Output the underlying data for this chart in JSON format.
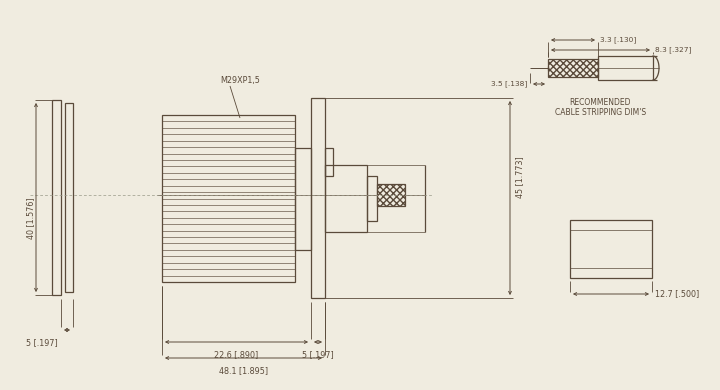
{
  "bg_color": "#f0ece0",
  "line_color": "#5a4a3a",
  "lw": 0.9,
  "fs": 5.8,
  "dim_labels": {
    "height_40": "40 [1.576]",
    "width_5_left": "5 [.197]",
    "total_48": "48.1 [1.895]",
    "section_22": "22.6 [.890]",
    "section_5": "5 [.197]",
    "height_45": "45 [1.773]",
    "strip_3_3": "3.3 [.130]",
    "strip_8_3": "8.3 [.327]",
    "strip_3_5": "3.5 [.138]",
    "nut_12_7": "12.7 [.500]",
    "thread": "M29XP1,5",
    "rec_label1": "RECOMMENDED",
    "rec_label2": "CABLE STRIPPING DIM'S"
  }
}
